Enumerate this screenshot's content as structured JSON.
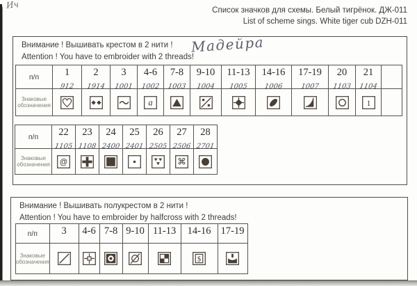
{
  "page": {
    "title_ru": "Список значков для схемы. Белый тигрёнок. ДЖ-011",
    "title_en": "List of scheme sings. White tiger cub DZH-011",
    "corner_scribble": "Ич"
  },
  "cross_section": {
    "attention_ru": "Внимание ! Вышивать крестом в 2 нити !",
    "attention_en": "Attention !  You have to embroider with 2 threads!",
    "handwriting": "Мадейра",
    "row_label": "п/п",
    "symbols_label_line1": "Знаковые",
    "symbols_label_line2": "обозначения",
    "table1_columns": [
      {
        "label": "1",
        "code": "912",
        "symbol": "heart-outline"
      },
      {
        "label": "2",
        "code": "1914",
        "symbol": "two-diamonds"
      },
      {
        "label": "3",
        "code": "1001",
        "symbol": "tilde"
      },
      {
        "label": "4-6",
        "code": "1002",
        "symbol": "letter-a"
      },
      {
        "label": "7-8",
        "code": "1003",
        "symbol": "filled-triangle"
      },
      {
        "label": "9-10",
        "code": "1004",
        "symbol": "percent-slash"
      },
      {
        "label": "11-13",
        "code": "1005",
        "symbol": "diamond-cross"
      },
      {
        "label": "14-16",
        "code": "1006",
        "symbol": "filled-leaf"
      },
      {
        "label": "17-19",
        "code": "1007",
        "symbol": "quarter-disc"
      },
      {
        "label": "20",
        "code": "1103",
        "symbol": "circle-outline"
      },
      {
        "label": "21",
        "code": "1104",
        "symbol": "digit-1"
      },
      {
        "label": "",
        "code": "",
        "symbol": ""
      }
    ],
    "table2_columns": [
      {
        "label": "22",
        "code": "1105",
        "symbol": "at-sign"
      },
      {
        "label": "23",
        "code": "1108",
        "symbol": "bold-cross"
      },
      {
        "label": "24",
        "code": "2400",
        "symbol": "filled-square"
      },
      {
        "label": "25",
        "code": "2401",
        "symbol": "center-dot"
      },
      {
        "label": "26",
        "code": "2505",
        "symbol": "triple-triangles"
      },
      {
        "label": "27",
        "code": "2506",
        "symbol": "command-knot"
      },
      {
        "label": "28",
        "code": "2701",
        "symbol": "filled-circle"
      }
    ]
  },
  "halfcross_section": {
    "attention_ru": "Внимание !  Вышивать полукрестом в 2 нити !",
    "attention_en": "Attention !  You have to embroider by halfcross with 2 threads!",
    "row_label": "п/п",
    "symbols_label_line1": "Знаковые",
    "symbols_label_line2": "обозначения",
    "columns": [
      {
        "label": "3",
        "code": "",
        "symbol": "diagonal-slash"
      },
      {
        "label": "4-6",
        "code": "",
        "symbol": "window-cross"
      },
      {
        "label": "7-8",
        "code": "",
        "symbol": "dark-donut"
      },
      {
        "label": "9-10",
        "code": "",
        "symbol": "slashed-ellipse"
      },
      {
        "label": "11-13",
        "code": "",
        "symbol": "checker-square"
      },
      {
        "label": "14-16",
        "code": "",
        "symbol": "dollar-box"
      },
      {
        "label": "17-19",
        "code": "",
        "symbol": "dark-tray"
      }
    ]
  }
}
